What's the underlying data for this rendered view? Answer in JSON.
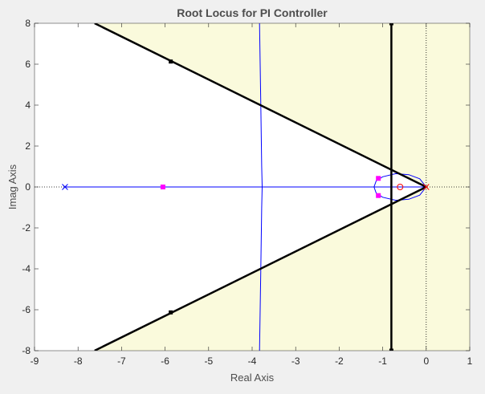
{
  "chart_data": {
    "type": "scatter",
    "title": "Root Locus for PI Controller",
    "xlabel": "Real Axis",
    "ylabel": "Imag Axis",
    "xlim": [
      -9,
      1
    ],
    "ylim": [
      -8,
      8
    ],
    "xticks": [
      -9,
      -8,
      -7,
      -6,
      -5,
      -4,
      -3,
      -2,
      -1,
      0,
      1
    ],
    "yticks": [
      -8,
      -6,
      -4,
      -2,
      0,
      2,
      4,
      6,
      8
    ],
    "grid": false,
    "colors": {
      "background": "#f0f0f0",
      "plot_area": "#ffffff",
      "region_shade": "#fafadc",
      "locus": "#0000ff",
      "boundary": "#000000",
      "poles": "#0000ff",
      "origin_pole": "#ff0000",
      "zero": "#ff0000",
      "closed_loop": "#ff00ff",
      "axis_text": "#262626",
      "title_text": "#4d4d4d"
    },
    "shaded_region": {
      "polygon": [
        [
          -7.62,
          8
        ],
        [
          1,
          8
        ],
        [
          1,
          -8
        ],
        [
          -7.62,
          -8
        ],
        [
          0,
          0
        ]
      ]
    },
    "boundary_lines": [
      {
        "points": [
          [
            -7.62,
            8
          ],
          [
            0,
            0
          ]
        ]
      },
      {
        "points": [
          [
            -7.62,
            -8
          ],
          [
            0,
            0
          ]
        ]
      },
      {
        "points": [
          [
            -0.8,
            8
          ],
          [
            -0.8,
            -8
          ]
        ]
      }
    ],
    "boundary_markers": [
      [
        -5.87,
        6.13
      ],
      [
        -5.87,
        -6.13
      ],
      [
        -0.8,
        8
      ],
      [
        -0.8,
        -8
      ]
    ],
    "locus_branches": [
      {
        "points": [
          [
            -8.3,
            0
          ],
          [
            0,
            0
          ]
        ]
      },
      {
        "points": [
          [
            -3.83,
            8
          ],
          [
            -3.8,
            4
          ],
          [
            -3.78,
            1
          ],
          [
            -3.77,
            0
          ],
          [
            -3.78,
            -1
          ],
          [
            -3.8,
            -4
          ],
          [
            -3.83,
            -8
          ]
        ]
      },
      {
        "points": [
          [
            0,
            0
          ],
          [
            -0.15,
            0.4
          ],
          [
            -0.4,
            0.6
          ],
          [
            -0.7,
            0.65
          ],
          [
            -1.0,
            0.5
          ],
          [
            -1.15,
            0.3
          ],
          [
            -1.2,
            0
          ],
          [
            -1.15,
            -0.3
          ],
          [
            -1.0,
            -0.5
          ],
          [
            -0.7,
            -0.65
          ],
          [
            -0.4,
            -0.6
          ],
          [
            -0.15,
            -0.4
          ],
          [
            0,
            0
          ]
        ]
      }
    ],
    "open_loop_poles": [
      [
        -8.3,
        0
      ],
      [
        0,
        0
      ]
    ],
    "open_loop_zeros": [
      [
        -0.6,
        0
      ]
    ],
    "closed_loop_poles": [
      [
        -6.05,
        0
      ],
      [
        -1.1,
        0.42
      ],
      [
        -1.1,
        -0.42
      ]
    ],
    "reference_lines": {
      "zero_real": 0,
      "zero_imag": 0
    }
  }
}
